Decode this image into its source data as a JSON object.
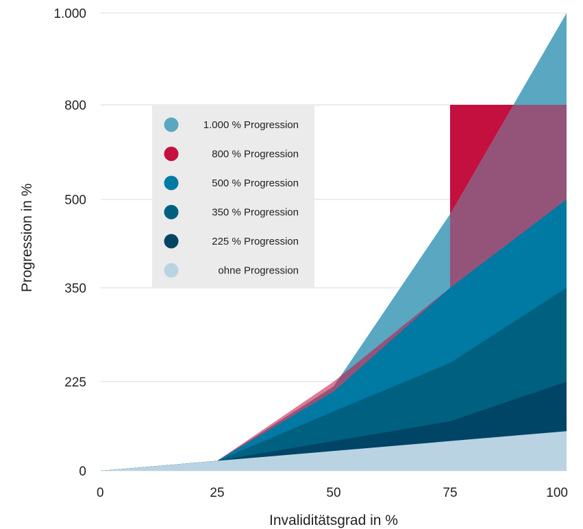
{
  "chart_data": {
    "type": "area",
    "xlabel": "Invaliditätsgrad in %",
    "ylabel": "Progression in %",
    "x_ticks": [
      0,
      25,
      50,
      75,
      100
    ],
    "y_ticks": [
      0,
      225,
      350,
      500,
      800,
      1000
    ],
    "x_tick_labels": [
      "0",
      "25",
      "50",
      "75",
      "100"
    ],
    "y_tick_labels": [
      "0",
      "225",
      "350",
      "500",
      "800",
      "1.000"
    ],
    "grid": "horizontal",
    "legend_position": "upper-left",
    "series": [
      {
        "name": "1.000 % Progression",
        "color": "#5aa7c2",
        "points": [
          [
            0,
            0
          ],
          [
            25,
            25
          ],
          [
            50,
            213
          ],
          [
            75,
            475
          ],
          [
            100,
            1000
          ]
        ]
      },
      {
        "name": "800 % Progression",
        "color": "#c4103e",
        "points": [
          [
            0,
            0
          ],
          [
            25,
            25
          ],
          [
            50,
            225
          ],
          [
            75,
            350
          ],
          [
            75,
            475
          ],
          [
            75,
            800
          ],
          [
            100,
            800
          ]
        ]
      },
      {
        "name": "500 % Progression",
        "color": "#0079a3",
        "points": [
          [
            0,
            0
          ],
          [
            25,
            25
          ],
          [
            50,
            200
          ],
          [
            75,
            350
          ],
          [
            100,
            500
          ]
        ]
      },
      {
        "name": "350 % Progression",
        "color": "#006080",
        "points": [
          [
            0,
            0
          ],
          [
            25,
            25
          ],
          [
            50,
            150
          ],
          [
            75,
            250
          ],
          [
            100,
            350
          ]
        ]
      },
      {
        "name": "225 % Progression",
        "color": "#004466",
        "points": [
          [
            0,
            0
          ],
          [
            25,
            25
          ],
          [
            50,
            75
          ],
          [
            75,
            125
          ],
          [
            100,
            225
          ]
        ]
      },
      {
        "name": "ohne Progression",
        "color": "#b9d3e2",
        "points": [
          [
            0,
            0
          ],
          [
            25,
            25
          ],
          [
            50,
            50
          ],
          [
            75,
            75
          ],
          [
            100,
            100
          ]
        ]
      }
    ]
  }
}
